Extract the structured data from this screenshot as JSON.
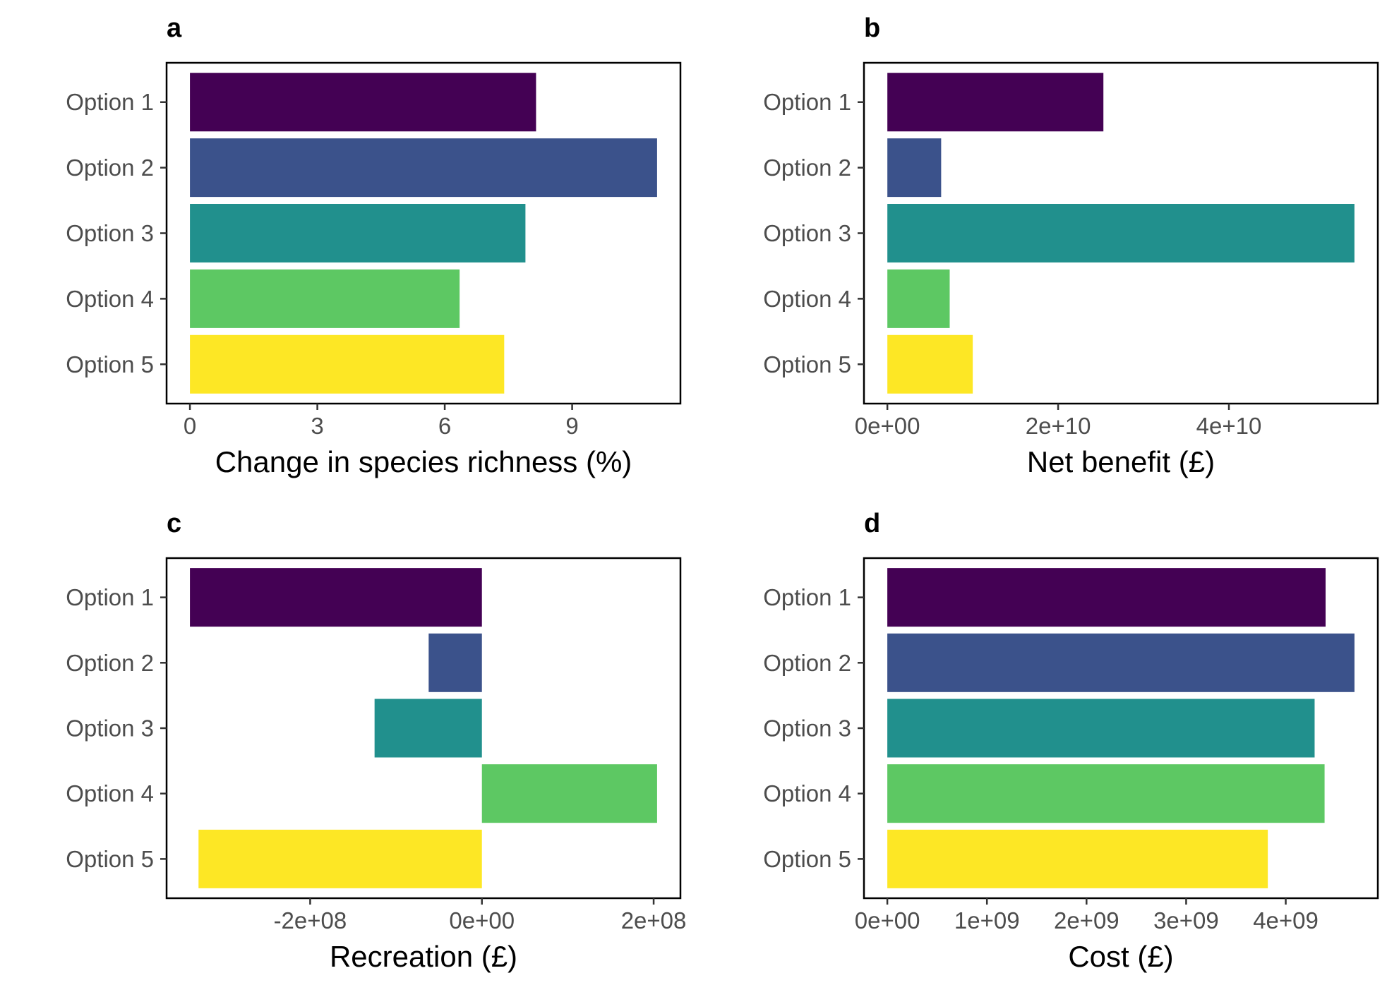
{
  "palette": [
    "#440154",
    "#3b528b",
    "#21908d",
    "#5dc863",
    "#fde725"
  ],
  "chart_data": [
    {
      "type": "bar",
      "orientation": "horizontal",
      "panel_label": "a",
      "categories": [
        "Option 1",
        "Option 2",
        "Option 3",
        "Option 4",
        "Option 5"
      ],
      "values": [
        8.15,
        11.0,
        7.9,
        6.35,
        7.4
      ],
      "xlabel": "Change in species richness (%)",
      "ylabel": "",
      "xlim": [
        -0.55,
        11.55
      ],
      "xticks": [
        0,
        3,
        6,
        9
      ],
      "xtick_labels": [
        "0",
        "3",
        "6",
        "9"
      ],
      "grid": false,
      "legend": "none"
    },
    {
      "type": "bar",
      "orientation": "horizontal",
      "panel_label": "b",
      "categories": [
        "Option 1",
        "Option 2",
        "Option 3",
        "Option 4",
        "Option 5"
      ],
      "values": [
        25300000000,
        6300000000,
        54700000000,
        7300000000,
        10000000000
      ],
      "xlabel": "Net benefit (£)",
      "ylabel": "",
      "xlim": [
        -2740000000,
        57440000000
      ],
      "xticks": [
        0,
        20000000000,
        40000000000
      ],
      "xtick_labels": [
        "0e+00",
        "2e+10",
        "4e+10"
      ],
      "grid": false,
      "legend": "none"
    },
    {
      "type": "bar",
      "orientation": "horizontal",
      "panel_label": "c",
      "categories": [
        "Option 1",
        "Option 2",
        "Option 3",
        "Option 4",
        "Option 5"
      ],
      "values": [
        -340000000,
        -62000000,
        -125000000,
        204000000,
        -330000000
      ],
      "xlabel": "Recreation (£)",
      "ylabel": "",
      "xlim": [
        -367200000,
        231200000
      ],
      "xticks": [
        -200000000,
        0,
        200000000
      ],
      "xtick_labels": [
        "-2e+08",
        "0e+00",
        "2e+08"
      ],
      "grid": false,
      "legend": "none"
    },
    {
      "type": "bar",
      "orientation": "horizontal",
      "panel_label": "d",
      "categories": [
        "Option 1",
        "Option 2",
        "Option 3",
        "Option 4",
        "Option 5"
      ],
      "values": [
        4400000000,
        4690000000,
        4290000000,
        4390000000,
        3820000000
      ],
      "xlabel": "Cost (£)",
      "ylabel": "",
      "xlim": [
        -234500000,
        4924500000
      ],
      "xticks": [
        0,
        1000000000,
        2000000000,
        3000000000,
        4000000000
      ],
      "xtick_labels": [
        "0e+00",
        "1e+09",
        "2e+09",
        "3e+09",
        "4e+09"
      ],
      "grid": false,
      "legend": "none"
    }
  ]
}
